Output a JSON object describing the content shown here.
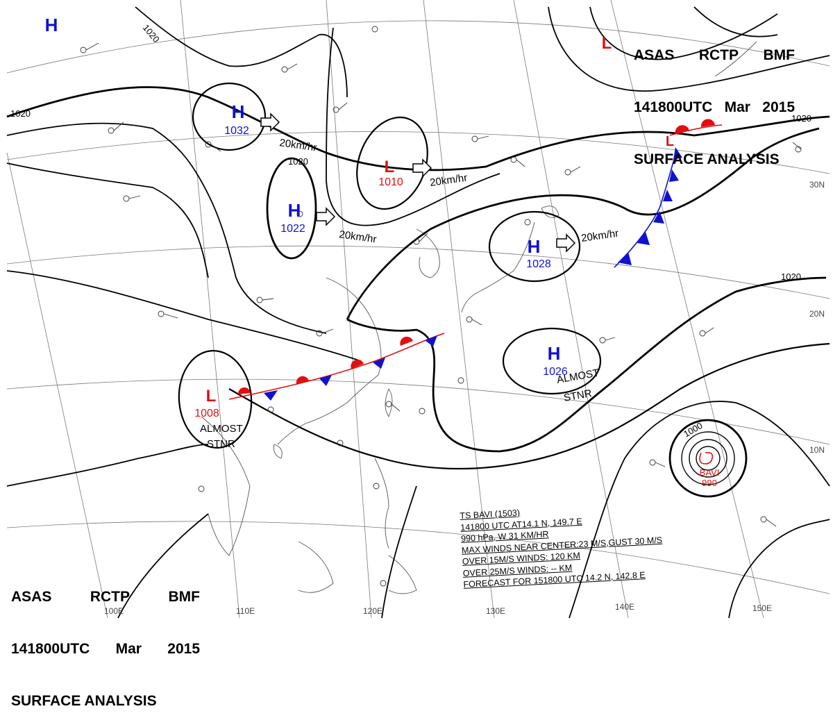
{
  "header": {
    "line1": [
      "ASAS",
      "RCTP",
      "BMF"
    ],
    "line2": [
      "141800UTC",
      "Mar",
      "2015"
    ],
    "line3": "SURFACE ANALYSIS"
  },
  "colors": {
    "high": "#1010d0",
    "low": "#e01010",
    "isobar": "#000000",
    "coast": "#555555"
  },
  "systems": [
    {
      "kind": "H",
      "pressure": "1032"
    },
    {
      "kind": "H",
      "pressure": "1022"
    },
    {
      "kind": "L",
      "pressure": "1010"
    },
    {
      "kind": "H",
      "pressure": "1028"
    },
    {
      "kind": "H",
      "pressure": "1026"
    },
    {
      "kind": "L",
      "pressure": "1008"
    },
    {
      "kind": "L",
      "pressure": ""
    },
    {
      "kind": "H",
      "pressure": ""
    }
  ],
  "isobar_labels": [
    "1020",
    "1020",
    "1020",
    "1020",
    "1020",
    "1000"
  ],
  "motion_labels": [
    "20km/hr",
    "20km/hr",
    "20km/hr",
    "20km/hr"
  ],
  "almost_stnr": [
    "ALMOST",
    "STNR"
  ],
  "typhoon": {
    "name": "BAVI",
    "pressure": "990",
    "info_lines": [
      "TS  BAVI  (1503)",
      "141800 UTC  AT14.1 N, 149.7 E",
      "990 hPa, W  31 KM/HR",
      "MAX WINDS NEAR CENTER:23 M/S,GUST 30 M/S",
      "OVER 15M/S WINDS: 120 KM",
      "OVER 25M/S WINDS: -- KM",
      "FORECAST FOR 151800 UTC 14.2 N, 142.8 E"
    ]
  },
  "lat_labels": [
    "30N",
    "20N",
    "10N"
  ],
  "lon_labels": [
    "100E",
    "110E",
    "120E",
    "130E",
    "140E",
    "150E"
  ]
}
